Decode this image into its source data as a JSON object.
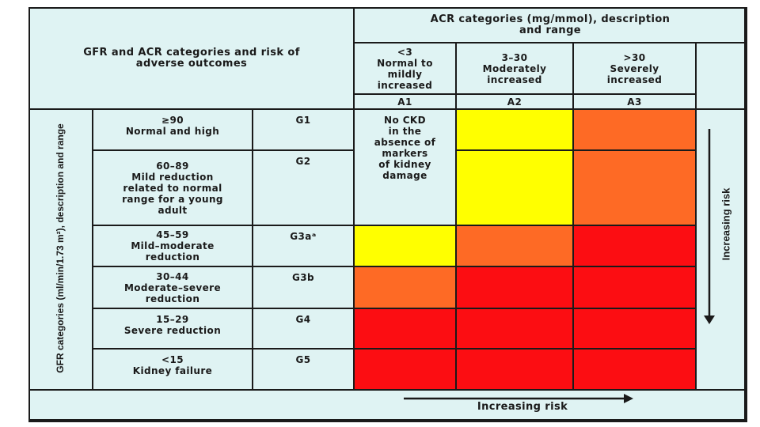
{
  "title": "GFR and ACR categories and risk of\nadverse outcomes",
  "acr_header": "ACR categories (mg/mmol), description\nand range",
  "gfr_axis_label": "GFR categories (ml/min/1.73 m²), description and range",
  "acr_columns": [
    {
      "range_desc": "<3\nNormal to\nmildly\nincreased",
      "code": "A1"
    },
    {
      "range_desc": "3–30\nModerately\nincreased",
      "code": "A2"
    },
    {
      "range_desc": ">30\nSeverely\nincreased",
      "code": "A3"
    }
  ],
  "gfr_rows": [
    {
      "desc": "≥90\nNormal and high",
      "code": "G1",
      "risk": [
        "",
        "yellow",
        "orange"
      ]
    },
    {
      "desc": "60–89\nMild reduction\nrelated to normal\nrange for a young\nadult",
      "code": "G2",
      "risk": [
        "",
        "yellow",
        "orange"
      ]
    },
    {
      "desc": "45–59\nMild–moderate\nreduction",
      "code": "G3aᵃ",
      "risk": [
        "yellow",
        "orange",
        "red"
      ]
    },
    {
      "desc": "30–44\nModerate–severe\nreduction",
      "code": "G3b",
      "risk": [
        "orange",
        "red",
        "red"
      ]
    },
    {
      "desc": "15–29\nSevere reduction",
      "code": "G4",
      "risk": [
        "red",
        "red",
        "red"
      ]
    },
    {
      "desc": "<15\nKidney failure",
      "code": "G5",
      "risk": [
        "red",
        "red",
        "red"
      ]
    }
  ],
  "no_ckd_note": "No CKD\nin the\nabsence of\nmarkers\nof kidney\ndamage",
  "increasing_risk_vertical": "Increasing risk",
  "increasing_risk_horizontal": "Increasing risk",
  "colors": {
    "background": "#dff3f3",
    "yellow": "#ffff00",
    "orange": "#fe6a25",
    "red": "#fc0d12",
    "border": "#1a1a1a"
  }
}
